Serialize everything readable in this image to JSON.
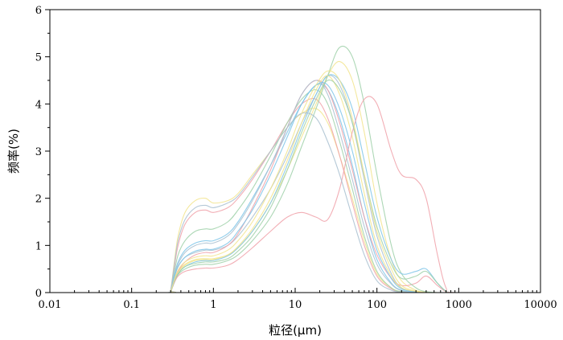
{
  "chart_data": {
    "type": "line",
    "title": "",
    "xlabel": "粒径(μm)",
    "ylabel": "频率(%)",
    "x_scale": "log",
    "xlim": [
      0.01,
      10000
    ],
    "ylim": [
      0,
      6
    ],
    "x_ticks": [
      0.01,
      0.1,
      1,
      10,
      100,
      1000,
      10000
    ],
    "x_tick_labels": [
      "0.01",
      "0.1",
      "1",
      "10",
      "100",
      "1000",
      "10000"
    ],
    "y_ticks": [
      0,
      1,
      2,
      3,
      4,
      5,
      6
    ],
    "y_tick_labels": [
      "0",
      "1",
      "2",
      "3",
      "4",
      "5",
      "6"
    ],
    "grid": false,
    "legend": "none",
    "palette": [
      "#f2e48c",
      "#f0a0a8",
      "#9ed0a8",
      "#7cc4e8",
      "#a8c0d0"
    ],
    "x": [
      0.02,
      0.28,
      0.3,
      0.33,
      0.37,
      0.45,
      0.6,
      0.8,
      1.0,
      1.5,
      2,
      3,
      5,
      8,
      12,
      18,
      25,
      35,
      50,
      70,
      100,
      150,
      200,
      300,
      400,
      550,
      700,
      900,
      10000
    ],
    "series": [
      {
        "values": [
          0,
          0,
          0.05,
          0.6,
          1.2,
          1.7,
          1.95,
          2.0,
          1.9,
          1.95,
          2.1,
          2.5,
          3.0,
          3.5,
          3.8,
          3.9,
          3.6,
          2.9,
          2.0,
          1.1,
          0.4,
          0.1,
          0.02,
          0,
          0,
          0,
          0,
          0,
          0
        ]
      },
      {
        "values": [
          0,
          0,
          0.04,
          0.5,
          1.0,
          1.45,
          1.7,
          1.75,
          1.7,
          1.8,
          2.0,
          2.4,
          3.0,
          3.6,
          4.0,
          4.1,
          3.7,
          2.9,
          1.9,
          1.0,
          0.35,
          0.08,
          0.01,
          0,
          0,
          0,
          0,
          0,
          0
        ]
      },
      {
        "values": [
          0,
          0,
          0.03,
          0.4,
          0.8,
          1.1,
          1.3,
          1.35,
          1.35,
          1.5,
          1.75,
          2.2,
          2.9,
          3.6,
          4.1,
          4.3,
          4.0,
          3.2,
          2.2,
          1.2,
          0.45,
          0.1,
          0.02,
          0,
          0,
          0,
          0,
          0,
          0
        ]
      },
      {
        "values": [
          0,
          0,
          0.03,
          0.35,
          0.65,
          0.9,
          1.05,
          1.1,
          1.1,
          1.25,
          1.5,
          2.0,
          2.7,
          3.4,
          4.0,
          4.4,
          4.3,
          3.7,
          2.7,
          1.6,
          0.7,
          0.2,
          0.05,
          0,
          0,
          0,
          0,
          0,
          0
        ]
      },
      {
        "values": [
          0,
          0,
          0.02,
          0.3,
          0.55,
          0.75,
          0.85,
          0.9,
          0.9,
          1.0,
          1.2,
          1.6,
          2.2,
          2.9,
          3.6,
          4.2,
          4.6,
          4.4,
          3.6,
          2.4,
          1.2,
          0.4,
          0.1,
          0.02,
          0,
          0,
          0,
          0,
          0
        ]
      },
      {
        "values": [
          0,
          0,
          0.02,
          0.25,
          0.45,
          0.6,
          0.7,
          0.72,
          0.72,
          0.8,
          0.95,
          1.3,
          1.9,
          2.6,
          3.3,
          4.0,
          4.6,
          4.9,
          4.5,
          3.4,
          1.9,
          0.7,
          0.25,
          0.05,
          0.01,
          0,
          0,
          0,
          0
        ]
      },
      {
        "values": [
          0,
          0,
          0.02,
          0.25,
          0.45,
          0.65,
          0.8,
          0.85,
          0.85,
          1.0,
          1.25,
          1.8,
          2.6,
          3.5,
          4.2,
          4.5,
          4.3,
          3.6,
          2.6,
          1.6,
          0.8,
          0.3,
          0.15,
          0.2,
          0.35,
          0.15,
          0.02,
          0,
          0
        ]
      },
      {
        "values": [
          0,
          0,
          0.02,
          0.2,
          0.38,
          0.5,
          0.58,
          0.6,
          0.6,
          0.68,
          0.8,
          1.1,
          1.6,
          2.3,
          3.1,
          3.9,
          4.6,
          5.2,
          5.0,
          4.0,
          2.5,
          1.0,
          0.4,
          0.1,
          0.02,
          0,
          0,
          0,
          0
        ]
      },
      {
        "values": [
          0,
          0,
          0.02,
          0.2,
          0.4,
          0.55,
          0.65,
          0.68,
          0.68,
          0.78,
          0.95,
          1.3,
          1.9,
          2.7,
          3.5,
          4.2,
          4.6,
          4.5,
          3.9,
          2.8,
          1.6,
          0.7,
          0.4,
          0.45,
          0.5,
          0.2,
          0.03,
          0,
          0
        ]
      },
      {
        "values": [
          0,
          0,
          0.03,
          0.3,
          0.6,
          0.85,
          1.0,
          1.05,
          1.05,
          1.2,
          1.45,
          1.95,
          2.7,
          3.5,
          4.2,
          4.5,
          4.2,
          3.4,
          2.4,
          1.4,
          0.6,
          0.18,
          0.04,
          0,
          0,
          0,
          0,
          0,
          0
        ]
      },
      {
        "values": [
          0,
          0,
          0.02,
          0.22,
          0.42,
          0.58,
          0.68,
          0.7,
          0.7,
          0.8,
          0.98,
          1.35,
          2.0,
          2.8,
          3.6,
          4.3,
          4.6,
          4.2,
          3.3,
          2.1,
          1.0,
          0.35,
          0.1,
          0.02,
          0,
          0,
          0,
          0,
          0
        ]
      },
      {
        "values": [
          0,
          0,
          0.02,
          0.2,
          0.35,
          0.45,
          0.5,
          0.52,
          0.52,
          0.58,
          0.7,
          0.95,
          1.3,
          1.6,
          1.7,
          1.6,
          1.55,
          2.2,
          3.4,
          4.1,
          4.0,
          3.0,
          2.5,
          2.4,
          2.0,
          0.8,
          0.1,
          0,
          0
        ]
      },
      {
        "values": [
          0,
          0,
          0.02,
          0.22,
          0.4,
          0.55,
          0.62,
          0.65,
          0.65,
          0.72,
          0.88,
          1.2,
          1.8,
          2.6,
          3.4,
          4.1,
          4.5,
          4.3,
          3.6,
          2.5,
          1.4,
          0.6,
          0.3,
          0.35,
          0.45,
          0.2,
          0.03,
          0,
          0
        ]
      },
      {
        "values": [
          0,
          0,
          0.02,
          0.3,
          0.55,
          0.75,
          0.88,
          0.92,
          0.92,
          1.05,
          1.3,
          1.75,
          2.5,
          3.3,
          4.0,
          4.4,
          4.4,
          3.9,
          3.0,
          1.9,
          0.9,
          0.3,
          0.08,
          0.01,
          0,
          0,
          0,
          0,
          0
        ]
      },
      {
        "values": [
          0,
          0,
          0.04,
          0.55,
          1.1,
          1.55,
          1.8,
          1.85,
          1.8,
          1.9,
          2.05,
          2.45,
          3.0,
          3.5,
          3.8,
          3.7,
          3.2,
          2.5,
          1.6,
          0.8,
          0.25,
          0.05,
          0.01,
          0,
          0,
          0,
          0,
          0,
          0
        ]
      },
      {
        "values": [
          0,
          0,
          0.02,
          0.25,
          0.48,
          0.65,
          0.75,
          0.78,
          0.78,
          0.9,
          1.1,
          1.5,
          2.2,
          3.0,
          3.8,
          4.4,
          4.7,
          4.5,
          3.7,
          2.5,
          1.3,
          0.5,
          0.15,
          0.03,
          0,
          0,
          0,
          0,
          0
        ]
      }
    ]
  }
}
